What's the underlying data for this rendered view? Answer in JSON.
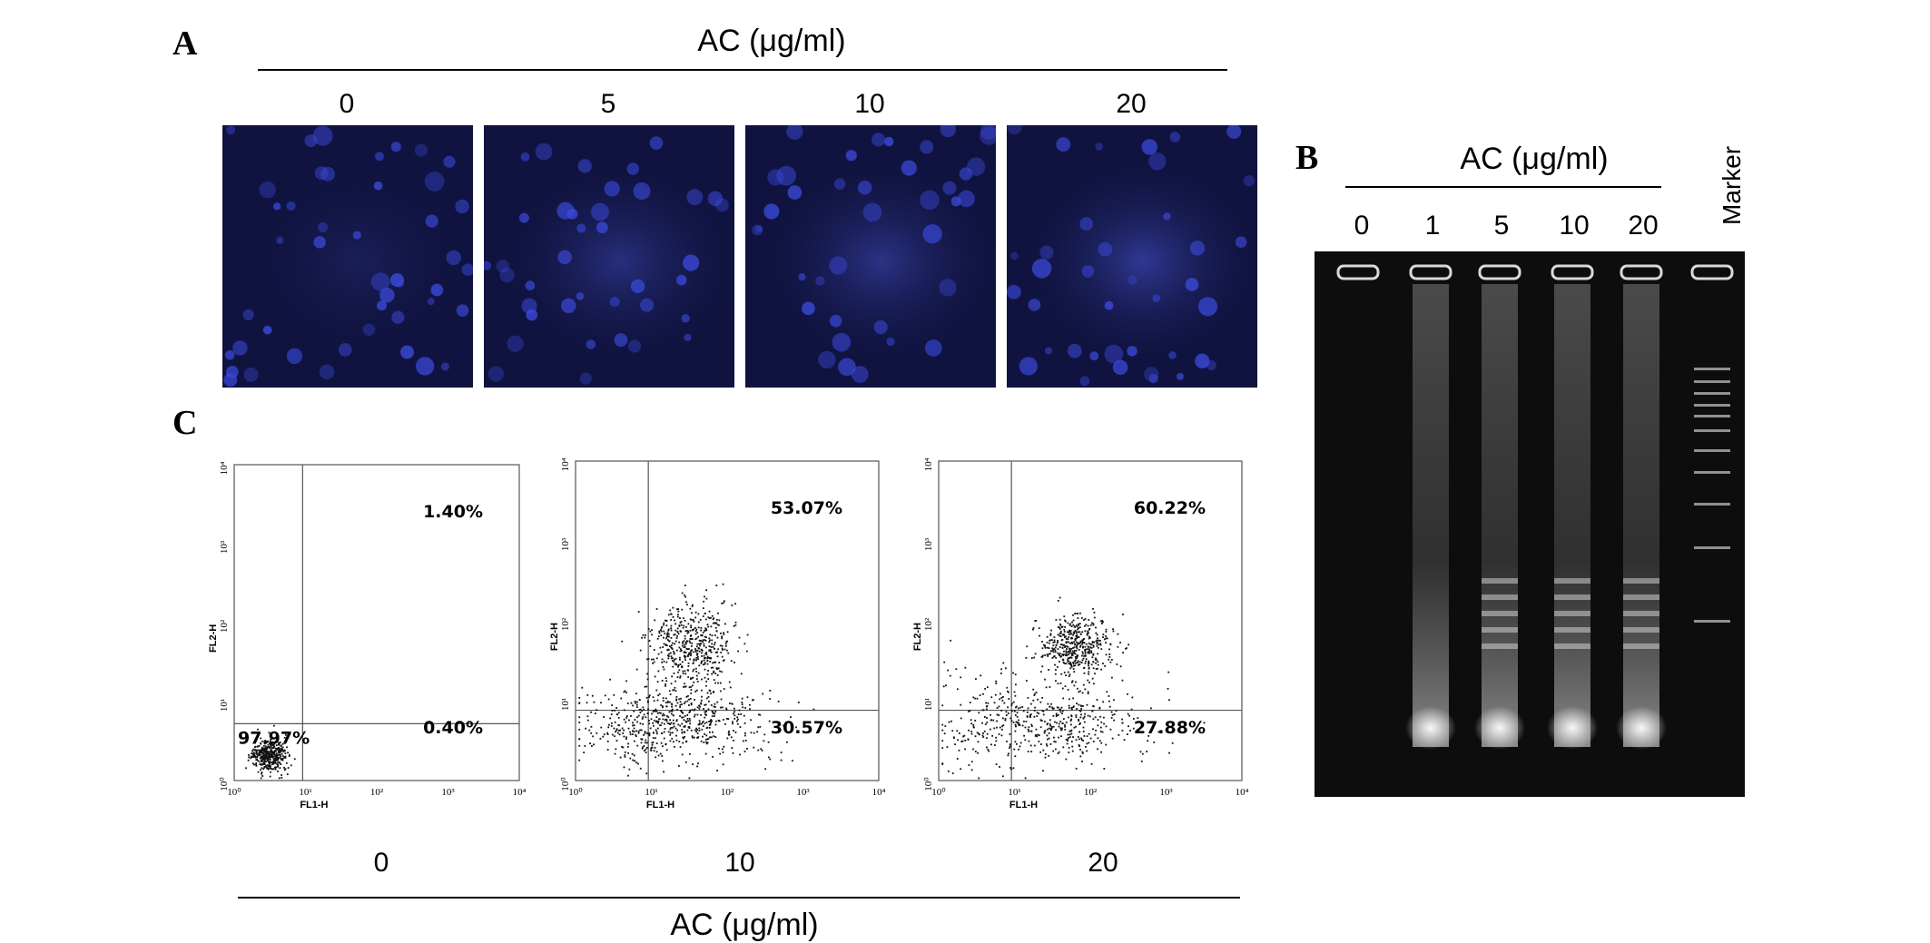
{
  "panels": {
    "A": {
      "letter": "A",
      "header": "AC (μg/ml)",
      "doses": [
        "0",
        "5",
        "10",
        "20"
      ]
    },
    "B": {
      "letter": "B",
      "header": "AC (μg/ml)",
      "lanes": [
        "0",
        "1",
        "5",
        "10",
        "20"
      ],
      "marker": "Marker"
    },
    "C": {
      "letter": "C",
      "footer": "AC (μg/ml)",
      "x_axis_label": "FL1-H",
      "y_axis_label": "FL2-H",
      "tick_labels": [
        "10⁰",
        "10¹",
        "10²",
        "10³",
        "10⁴"
      ],
      "plots": [
        {
          "dose": "0",
          "upper_right": "1.40%",
          "lower_left": "97.97%",
          "lower_right": "0.40%"
        },
        {
          "dose": "10",
          "upper_right": "53.07%",
          "lower_left": "",
          "lower_right": "30.57%"
        },
        {
          "dose": "20",
          "upper_right": "60.22%",
          "lower_left": "",
          "lower_right": "27.88%"
        }
      ]
    }
  },
  "chart_data": [
    {
      "type": "scatter",
      "title": "",
      "xlabel": "FL1-H",
      "ylabel": "FL2-H",
      "x_scale": "log",
      "y_scale": "log",
      "xlim": [
        1,
        10000
      ],
      "ylim": [
        1,
        10000
      ],
      "quadrant_percentages": {
        "upper_right": 1.4,
        "lower_left": 97.97,
        "lower_right": 0.4
      },
      "category": "0"
    },
    {
      "type": "scatter",
      "title": "",
      "xlabel": "FL1-H",
      "ylabel": "FL2-H",
      "x_scale": "log",
      "y_scale": "log",
      "xlim": [
        1,
        10000
      ],
      "ylim": [
        1,
        10000
      ],
      "quadrant_percentages": {
        "upper_right": 53.07,
        "lower_right": 30.57
      },
      "category": "10"
    },
    {
      "type": "scatter",
      "title": "",
      "xlabel": "FL1-H",
      "ylabel": "FL2-H",
      "x_scale": "log",
      "y_scale": "log",
      "xlim": [
        1,
        10000
      ],
      "ylim": [
        1,
        10000
      ],
      "quadrant_percentages": {
        "upper_right": 60.22,
        "lower_right": 27.88
      },
      "category": "20"
    }
  ]
}
